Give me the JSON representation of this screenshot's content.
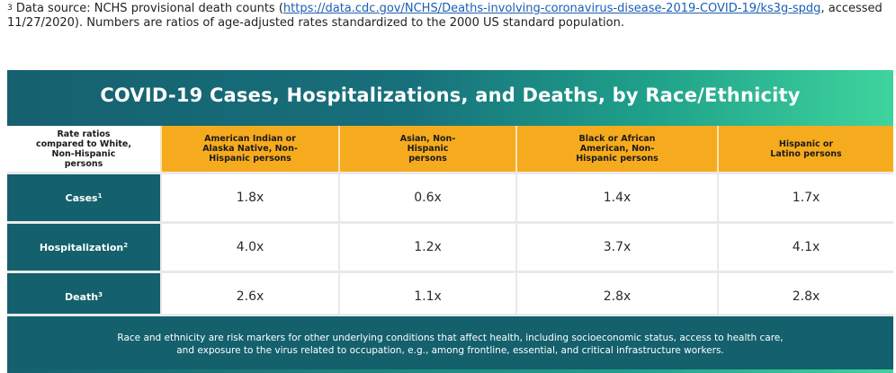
{
  "footnote": {
    "marker": "3",
    "text_before": "Data source: NCHS provisional death counts (",
    "link_text": "https://data.cdc.gov/NCHS/Deaths-involving-coronavirus-disease-2019-COVID-19/ks3g-spdg",
    "text_after": ", accessed 11/27/2020). Numbers are ratios of age-adjusted rates standardized to the 2000 US standard population."
  },
  "infographic": {
    "title": "COVID-19 Cases, Hospitalizations, and Deaths, by Race/Ethnicity",
    "corner_header": "Rate ratios compared to White, Non-Hispanic persons",
    "columns": [
      "American Indian or Alaska Native, Non-Hispanic persons",
      "Asian, Non-Hispanic persons",
      "Black or African American, Non-Hispanic persons",
      "Hispanic or Latino persons"
    ],
    "rows": [
      {
        "label": "Cases",
        "sup": "1",
        "values": [
          "1.8x",
          "0.6x",
          "1.4x",
          "1.7x"
        ]
      },
      {
        "label": "Hospitalization",
        "sup": "2",
        "values": [
          "4.0x",
          "1.2x",
          "3.7x",
          "4.1x"
        ]
      },
      {
        "label": "Death",
        "sup": "3",
        "values": [
          "2.6x",
          "1.1x",
          "2.8x",
          "2.8x"
        ]
      }
    ],
    "note": "Race and ethnicity are risk markers for other underlying conditions that affect health, including socioeconomic status, access to health care, and exposure to the virus related to occupation, e.g., among frontline, essential, and critical infrastructure workers.",
    "colors": {
      "teal": "#14606d",
      "orange": "#f6ab1e",
      "green_accent": "#3ed49d"
    }
  }
}
